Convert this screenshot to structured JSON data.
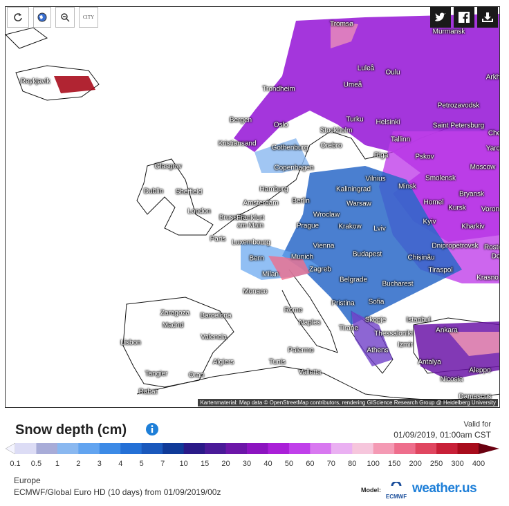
{
  "toolbar": {
    "city_button": "CITY"
  },
  "map": {
    "cities": [
      "Tromsø",
      "Murmansk",
      "Reykjavik",
      "Luleå",
      "Oulu",
      "Arkh",
      "Umeå",
      "Trondheim",
      "Petrozavodsk",
      "Turku",
      "Helsinki",
      "Saint Petersburg",
      "Bergen",
      "Oslo",
      "Stockholm",
      "Che",
      "Kristiansand",
      "Gothenburg",
      "Orebro",
      "Tallinn",
      "Yaro",
      "Riga",
      "Pskov",
      "Glasgow",
      "Copenhagen",
      "Moscow",
      "Vilnius",
      "Smolensk",
      "Dublin",
      "Sheffield",
      "Hamburg",
      "Kaliningrad",
      "Minsk",
      "Bryansk",
      "Amsterdam",
      "Berlin",
      "Warsaw",
      "Homel",
      "Kursk",
      "Voron",
      "London",
      "Brussels",
      "Wroclaw",
      "Frankfurt am Main",
      "Kyiv",
      "Kharkiv",
      "Prague",
      "Krakow",
      "Lviv",
      "Paris",
      "Luxembourg",
      "Dnipropetrovsk",
      "Rosto",
      "Vienna",
      "Budapest",
      "Chișinău",
      "Bern",
      "Munich",
      "Do",
      "Zagreb",
      "Tiraspol",
      "Milan",
      "Krasno",
      "Belgrade",
      "Bucharest",
      "Monaco",
      "Pristina",
      "Sofia",
      "Zaragoza",
      "Barcelona",
      "Rome",
      "Madrid",
      "Naples",
      "Skopje",
      "Istanbul",
      "Tirane",
      "Ankara",
      "Thessaloniki",
      "Valencia",
      "Lisbon",
      "Izmir",
      "Athens",
      "Algiers",
      "Palermo",
      "Tunis",
      "Antalya",
      "Aleppo",
      "Valletta",
      "Tangier",
      "Oran",
      "Nicosia",
      "Rabat",
      "Damascus"
    ],
    "attribution": "Kartenmaterial: Map data © OpenStreetMap contributors, rendering GIScience Research Group @ Heidelberg University"
  },
  "legend": {
    "title": "Snow depth (cm)",
    "valid_label": "Valid for",
    "valid_time": "01/09/2019, 01:00am CST",
    "labels": [
      0.1,
      0.5,
      1,
      2,
      3,
      4,
      5,
      7,
      10,
      15,
      20,
      30,
      40,
      50,
      60,
      70,
      80,
      100,
      150,
      200,
      250,
      300,
      400
    ],
    "colors": [
      "#f4f4ff",
      "#dcdcf5",
      "#a8acd8",
      "#8ab8f0",
      "#62a4f0",
      "#3c8ae6",
      "#2470d6",
      "#1a58bc",
      "#103a98",
      "#2a1a88",
      "#4a1a98",
      "#6c16a8",
      "#8c14c0",
      "#aa20d8",
      "#c040ea",
      "#d878f0",
      "#eab0f2",
      "#f6c6dc",
      "#f49ab4",
      "#ee6e8c",
      "#e04660",
      "#c82038",
      "#a80c1c",
      "#6a0010"
    ]
  },
  "footer": {
    "region": "Europe",
    "model_run": "ECMWF/Global Euro HD (10 days) from 01/09/2019/00z",
    "model_label": "Model:",
    "model_name": "ECMWF",
    "brand": "weather.us"
  }
}
